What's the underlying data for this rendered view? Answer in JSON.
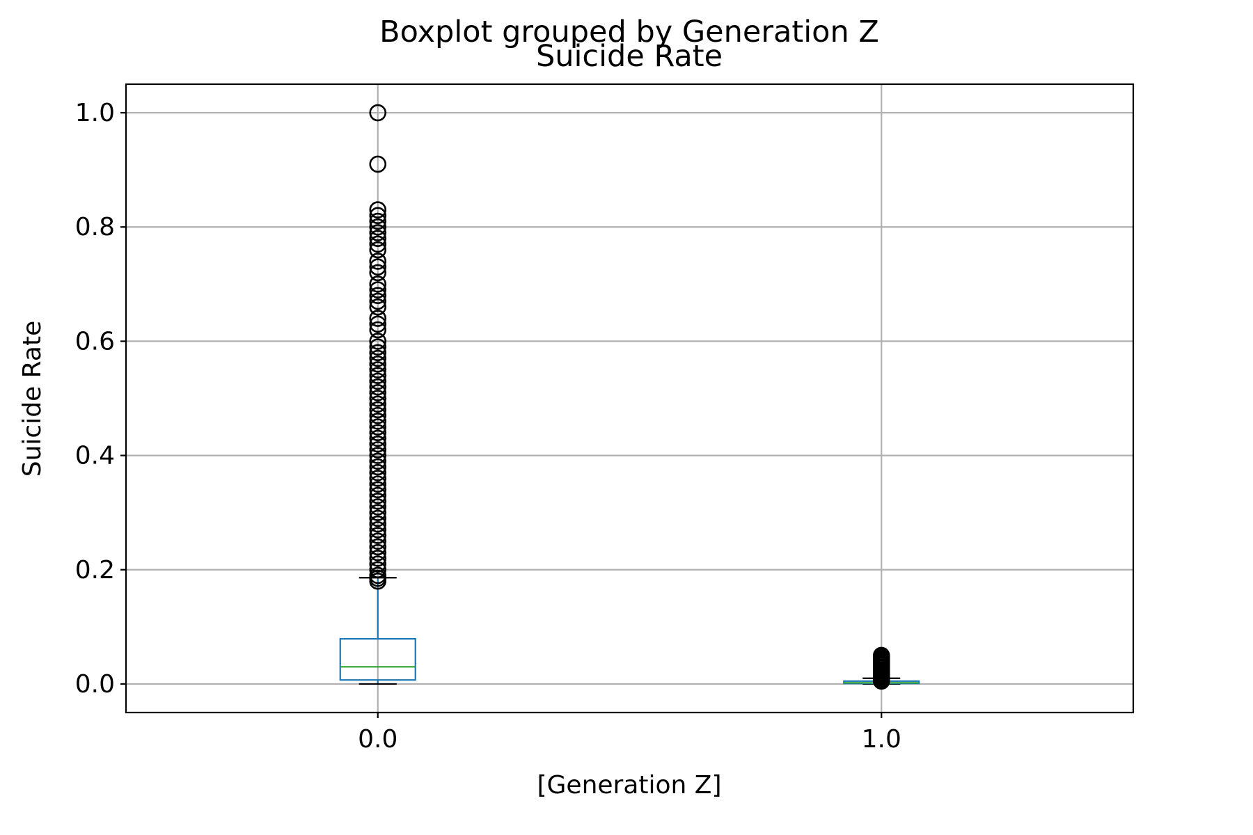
{
  "chart_data": {
    "type": "box",
    "suptitle": "Boxplot grouped by Generation Z",
    "title": "Suicide Rate",
    "xlabel": "[Generation Z]",
    "ylabel": "Suicide Rate",
    "categories": [
      "0.0",
      "1.0"
    ],
    "yticks": [
      "0.0",
      "0.2",
      "0.4",
      "0.6",
      "0.8",
      "1.0"
    ],
    "ylim": [
      -0.05,
      1.05
    ],
    "grid": true,
    "colors": {
      "box": "#1f77b4",
      "median": "#2ca02c",
      "whisker": "#1f77b4",
      "cap": "#000000",
      "flier": "#000000"
    },
    "series": [
      {
        "category": "0.0",
        "whisker_low": 0.0,
        "q1": 0.007,
        "median": 0.03,
        "q3": 0.079,
        "whisker_high": 0.186,
        "outliers": [
          0.18,
          0.185,
          0.19,
          0.2,
          0.21,
          0.22,
          0.23,
          0.24,
          0.25,
          0.26,
          0.27,
          0.28,
          0.29,
          0.3,
          0.31,
          0.32,
          0.33,
          0.34,
          0.35,
          0.36,
          0.37,
          0.38,
          0.39,
          0.4,
          0.41,
          0.42,
          0.43,
          0.44,
          0.45,
          0.46,
          0.47,
          0.48,
          0.49,
          0.5,
          0.51,
          0.52,
          0.53,
          0.54,
          0.55,
          0.56,
          0.57,
          0.58,
          0.59,
          0.6,
          0.62,
          0.63,
          0.64,
          0.66,
          0.67,
          0.68,
          0.69,
          0.7,
          0.72,
          0.73,
          0.74,
          0.76,
          0.77,
          0.78,
          0.79,
          0.8,
          0.81,
          0.82,
          0.83,
          0.91,
          1.0
        ]
      },
      {
        "category": "1.0",
        "whisker_low": 0.0,
        "q1": 0.001,
        "median": 0.002,
        "q3": 0.005,
        "whisker_high": 0.01,
        "outliers": [
          0.005,
          0.008,
          0.011,
          0.013,
          0.015,
          0.018,
          0.02,
          0.023,
          0.025,
          0.028,
          0.03,
          0.033,
          0.035,
          0.038,
          0.04,
          0.043,
          0.045,
          0.048,
          0.05
        ]
      }
    ]
  }
}
